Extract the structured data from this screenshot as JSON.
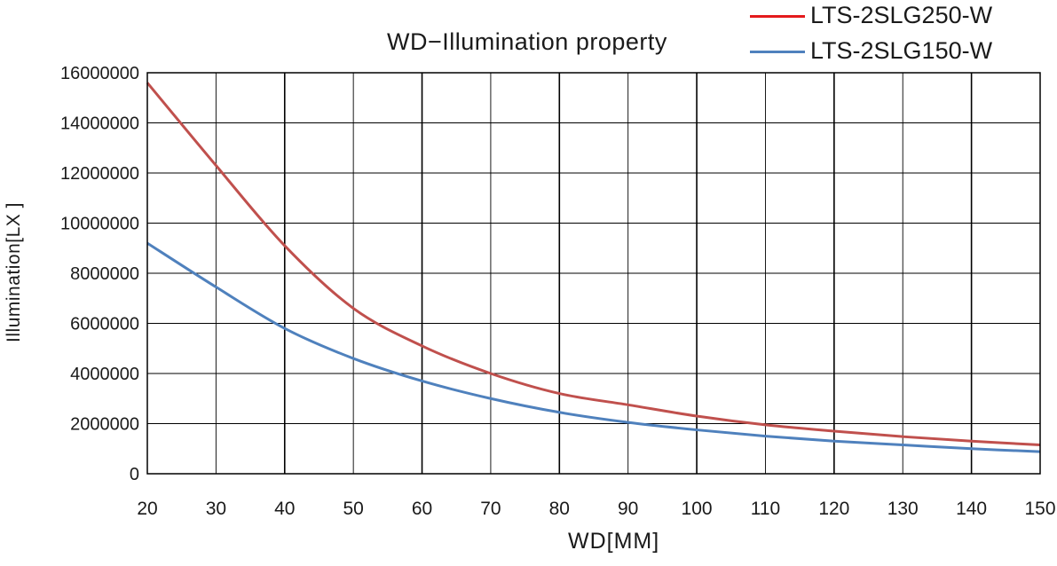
{
  "chart_data": {
    "type": "line",
    "title": "WD−Illumination property",
    "xlabel": "WD[MM]",
    "ylabel": "Illumination[LX ]",
    "xlim": [
      20,
      150
    ],
    "ylim": [
      0,
      16000000
    ],
    "x_ticks": [
      20,
      30,
      40,
      50,
      60,
      70,
      80,
      90,
      100,
      110,
      120,
      130,
      140,
      150
    ],
    "y_ticks": [
      0,
      2000000,
      4000000,
      6000000,
      8000000,
      10000000,
      12000000,
      14000000,
      16000000
    ],
    "grid": true,
    "legend_position": "top-right",
    "x": [
      20,
      30,
      40,
      50,
      60,
      70,
      80,
      90,
      100,
      110,
      120,
      130,
      140,
      150
    ],
    "series": [
      {
        "name": "LTS-2SLG250-W",
        "color": "#c0504d",
        "legend_color": "#e41a1c",
        "values": [
          15600000,
          12300000,
          9100000,
          6600000,
          5100000,
          4000000,
          3200000,
          2750000,
          2300000,
          1950000,
          1700000,
          1480000,
          1300000,
          1150000
        ]
      },
      {
        "name": "LTS-2SLG150-W",
        "color": "#4f81bd",
        "legend_color": "#4f81bd",
        "values": [
          9200000,
          7450000,
          5800000,
          4600000,
          3700000,
          3000000,
          2450000,
          2050000,
          1750000,
          1500000,
          1300000,
          1150000,
          1000000,
          880000
        ]
      }
    ]
  }
}
